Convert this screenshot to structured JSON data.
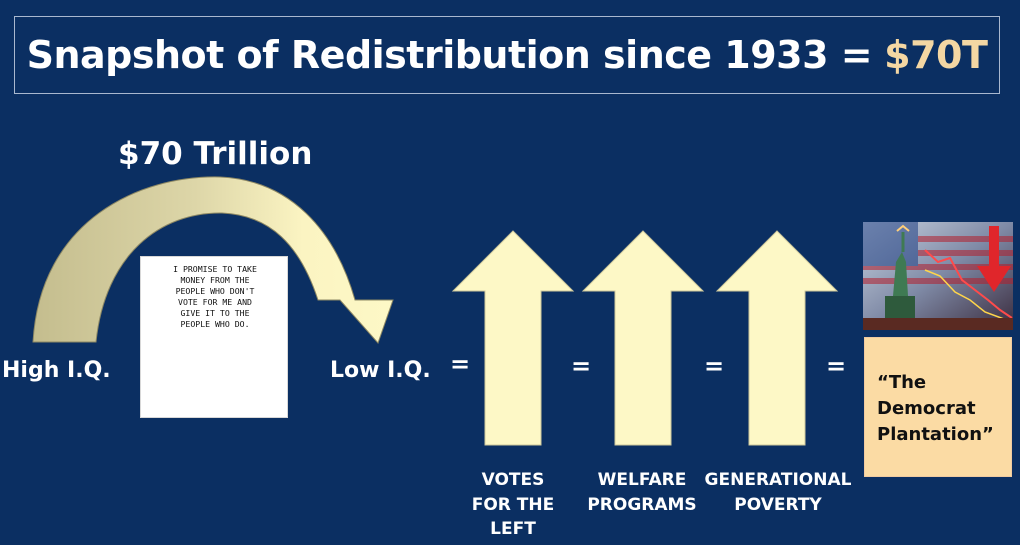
{
  "title": {
    "main": "Snapshot of Redistribution since 1933 =",
    "accent": "$70T"
  },
  "arc_label": "$70 Trillion",
  "high_iq": "High I.Q.",
  "low_iq": "Low I.Q.",
  "equals": [
    "=",
    "=",
    "=",
    "="
  ],
  "cartoon": {
    "speech": [
      "I promise to take",
      "money from the",
      "people who don't",
      "vote for me and",
      "give it to the",
      "people who do."
    ]
  },
  "captions": {
    "votes": [
      "VOTES",
      "FOR THE",
      "LEFT"
    ],
    "welfare": [
      "WELFARE",
      "PROGRAMS"
    ],
    "poverty": [
      "GENERATIONAL",
      "POVERTY"
    ]
  },
  "quote": [
    "“The",
    "Democrat",
    "Plantation”"
  ],
  "colors": {
    "background": "#0b2f62",
    "accent": "#f4d7a3",
    "arrow_fill": "#fdf8c6",
    "arc_dark": "#cdc79c",
    "quote_bg": "#fbdba4"
  }
}
